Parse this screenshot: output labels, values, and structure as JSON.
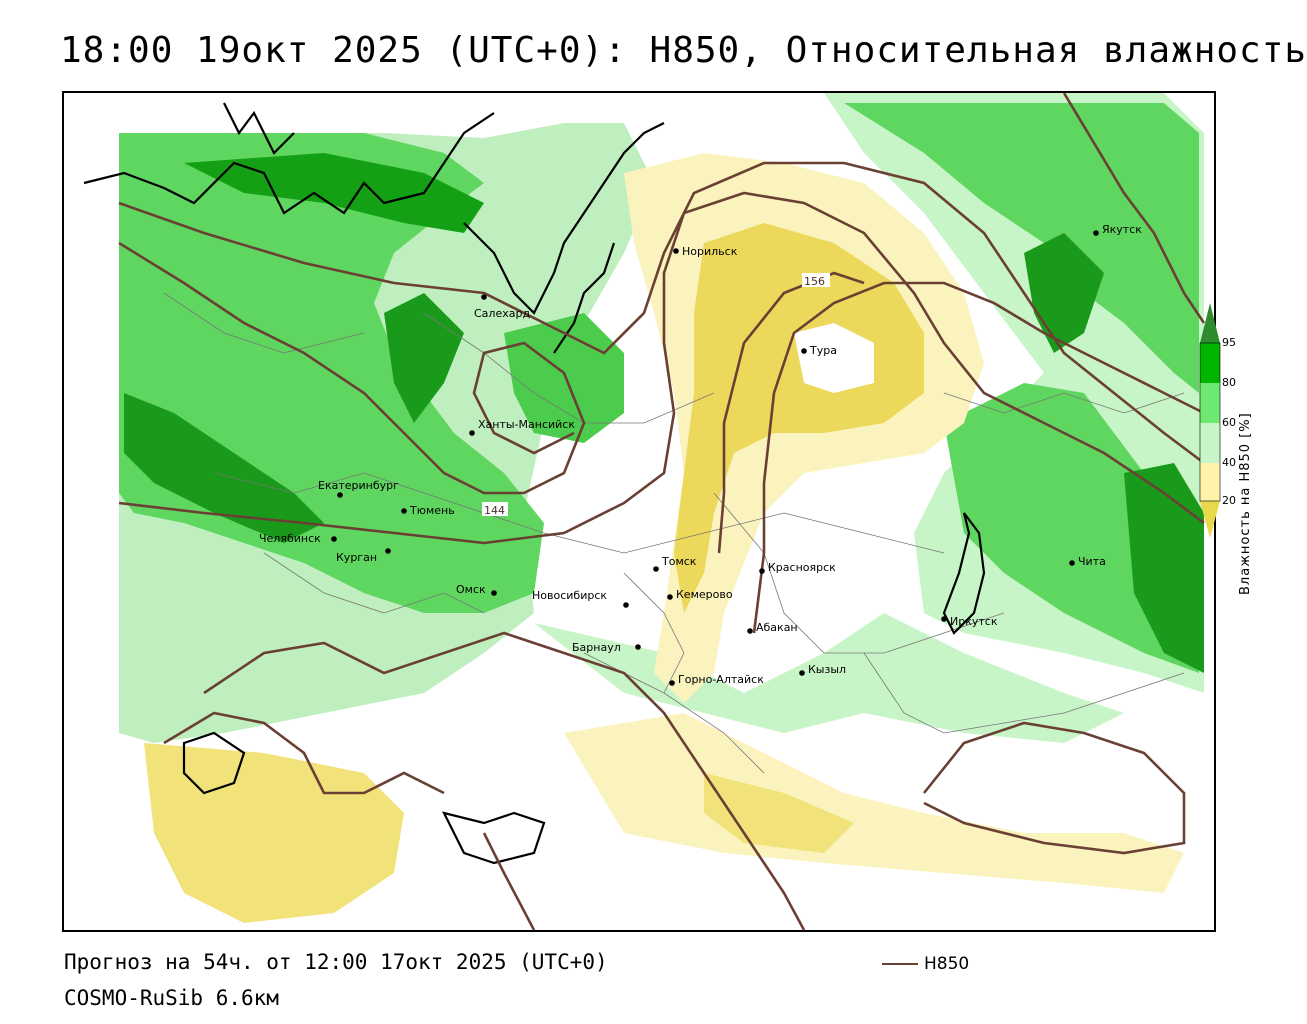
{
  "title": "18:00 19окт 2025 (UTC+0): H850, Относительная влажность",
  "map": {
    "cities": [
      {
        "name": "Норильск"
      },
      {
        "name": "Якутск"
      },
      {
        "name": "Салехард"
      },
      {
        "name": "Тура"
      },
      {
        "name": "Ханты-Мансийск"
      },
      {
        "name": "Екатеринбург"
      },
      {
        "name": "Тюмень"
      },
      {
        "name": "Челябинск"
      },
      {
        "name": "Курган"
      },
      {
        "name": "Омск"
      },
      {
        "name": "Новосибирск"
      },
      {
        "name": "Томск"
      },
      {
        "name": "Кемерово"
      },
      {
        "name": "Красноярск"
      },
      {
        "name": "Барнаул"
      },
      {
        "name": "Абакан"
      },
      {
        "name": "Иркутск"
      },
      {
        "name": "Чита"
      },
      {
        "name": "Кызыл"
      },
      {
        "name": "Горно-Алтайск"
      }
    ],
    "contour_labels": [
      "156",
      "144"
    ]
  },
  "colorbar": {
    "title": "Влажность на H850 [%]",
    "ticks": [
      "95",
      "80",
      "60",
      "40",
      "20"
    ],
    "colors": [
      "#2e8b2e",
      "#00b400",
      "#6ee86e",
      "#c8f5c8",
      "#ffffff",
      "#fff3a8",
      "#e8d84a"
    ]
  },
  "footer": {
    "forecast": "Прогноз на 54ч. от 12:00 17окт 2025 (UTC+0)",
    "model": "COSMO-RuSib 6.6км",
    "legend_label": "H850"
  },
  "colors": {
    "contour": "#6b4034",
    "dark_green": "#1f9a1f",
    "green": "#3ccd3c",
    "light_green": "#a8eea8",
    "yellow": "#f2e27a",
    "light_yellow": "#fbf3bd"
  }
}
